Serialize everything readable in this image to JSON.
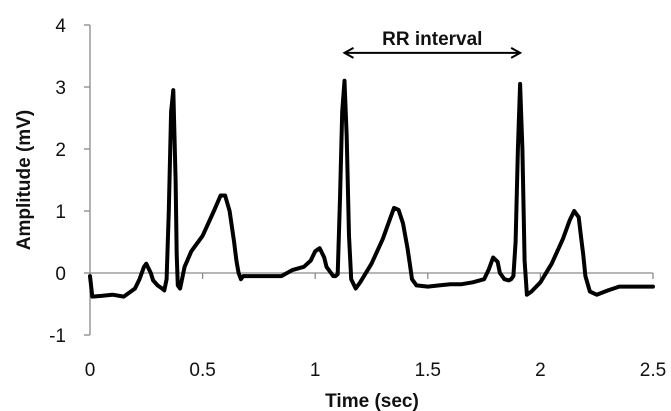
{
  "chart_data": {
    "type": "line",
    "title": "",
    "xlabel": "Time (sec)",
    "ylabel": "Amplitude (mV)",
    "xlim": [
      0,
      2.5
    ],
    "ylim": [
      -1,
      4
    ],
    "xticks": [
      "0",
      "0.5",
      "1",
      "1.5",
      "2",
      "2.5"
    ],
    "yticks": [
      "-1",
      "0",
      "1",
      "2",
      "3",
      "4"
    ],
    "grid": false,
    "legend": "none",
    "line_color": "#000000",
    "annotation": {
      "text": "RR interval",
      "from_x": 1.13,
      "to_x": 1.91,
      "y": 3.55
    },
    "series": [
      {
        "x": [
          0,
          0.01,
          0.05,
          0.1,
          0.15,
          0.2,
          0.22,
          0.24,
          0.25,
          0.27,
          0.28,
          0.3,
          0.32,
          0.33,
          0.34,
          0.35,
          0.36,
          0.37,
          0.38,
          0.385,
          0.39,
          0.4,
          0.42,
          0.45,
          0.5,
          0.55,
          0.58,
          0.6,
          0.62,
          0.64,
          0.65,
          0.66,
          0.67,
          0.68,
          0.7,
          0.75,
          0.8,
          0.85,
          0.9,
          0.95,
          0.98,
          1.0,
          1.02,
          1.04,
          1.05,
          1.07,
          1.08,
          1.09,
          1.1,
          1.11,
          1.12,
          1.13,
          1.14,
          1.15,
          1.16,
          1.18,
          1.2,
          1.25,
          1.3,
          1.33,
          1.35,
          1.37,
          1.39,
          1.41,
          1.42,
          1.43,
          1.45,
          1.5,
          1.55,
          1.6,
          1.65,
          1.7,
          1.75,
          1.77,
          1.79,
          1.81,
          1.82,
          1.84,
          1.86,
          1.87,
          1.88,
          1.89,
          1.9,
          1.91,
          1.92,
          1.93,
          1.94,
          1.96,
          2.0,
          2.05,
          2.1,
          2.13,
          2.15,
          2.17,
          2.18,
          2.19,
          2.2,
          2.22,
          2.25,
          2.3,
          2.35,
          2.4,
          2.45,
          2.5
        ],
        "y": [
          -0.05,
          -0.38,
          -0.37,
          -0.35,
          -0.38,
          -0.25,
          -0.1,
          0.1,
          0.15,
          0.0,
          -0.12,
          -0.2,
          -0.25,
          -0.28,
          -0.1,
          1.0,
          2.6,
          2.95,
          1.5,
          0.3,
          -0.2,
          -0.25,
          0.1,
          0.35,
          0.6,
          1.0,
          1.25,
          1.25,
          1.0,
          0.5,
          0.2,
          0.0,
          -0.1,
          -0.05,
          -0.05,
          -0.05,
          -0.05,
          -0.05,
          0.05,
          0.1,
          0.2,
          0.35,
          0.4,
          0.25,
          0.1,
          0.0,
          -0.05,
          -0.05,
          -0.02,
          1.2,
          2.6,
          3.1,
          2.2,
          0.6,
          -0.1,
          -0.25,
          -0.15,
          0.15,
          0.55,
          0.85,
          1.05,
          1.02,
          0.8,
          0.4,
          0.15,
          -0.1,
          -0.2,
          -0.22,
          -0.2,
          -0.18,
          -0.18,
          -0.15,
          -0.1,
          0.05,
          0.25,
          0.18,
          0.0,
          -0.1,
          -0.12,
          -0.1,
          -0.05,
          0.5,
          2.0,
          3.05,
          2.0,
          0.2,
          -0.35,
          -0.3,
          -0.15,
          0.15,
          0.55,
          0.85,
          1.0,
          0.9,
          0.6,
          0.3,
          -0.05,
          -0.3,
          -0.35,
          -0.28,
          -0.22,
          -0.22,
          -0.22,
          -0.22
        ]
      }
    ]
  }
}
